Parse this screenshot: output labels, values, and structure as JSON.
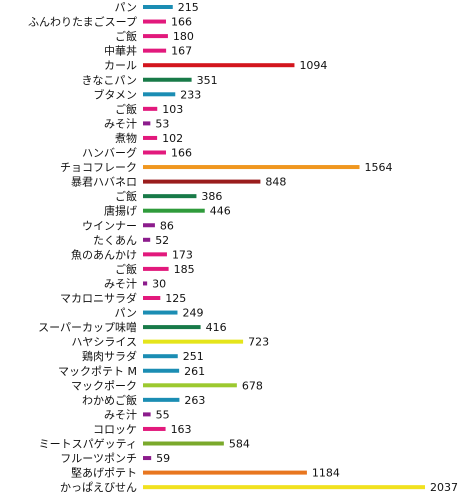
{
  "chart_data": {
    "type": "bar",
    "orientation": "horizontal",
    "categories": [
      "パン",
      "ふんわりたまごスープ",
      "ご飯",
      "中華丼",
      "カール",
      "きなこパン",
      "ブタメン",
      "ご飯",
      "みそ汁",
      "煮物",
      "ハンバーグ",
      "チョコフレーク",
      "暴君ハバネロ",
      "ご飯",
      "唐揚げ",
      "ウインナー",
      "たくあん",
      "魚のあんかけ",
      "ご飯",
      "みそ汁",
      "マカロニサラダ",
      "パン",
      "スーパーカップ味噌",
      "ハヤシライス",
      "鶏肉サラダ",
      "マックポテト M",
      "マックポーク",
      "わかめご飯",
      "みそ汁",
      "コロッケ",
      "ミートスパゲッティ",
      "フルーツポンチ",
      "堅あげポテト",
      "かっぱえびせん"
    ],
    "values": [
      215,
      166,
      180,
      167,
      1094,
      351,
      233,
      103,
      53,
      102,
      166,
      1564,
      848,
      386,
      446,
      86,
      52,
      173,
      185,
      30,
      125,
      249,
      416,
      723,
      251,
      261,
      678,
      263,
      55,
      163,
      584,
      59,
      1184,
      2037
    ],
    "colors": [
      "#1b8db3",
      "#e2197c",
      "#e2197c",
      "#e2197c",
      "#d3151d",
      "#187a48",
      "#1b8db3",
      "#e2197c",
      "#8c1c8c",
      "#e2197c",
      "#e2197c",
      "#f0971f",
      "#9a1d1d",
      "#187a48",
      "#2f9b3b",
      "#8c1c8c",
      "#8c1c8c",
      "#e2197c",
      "#e2197c",
      "#8c1c8c",
      "#e2197c",
      "#1b8db3",
      "#187a48",
      "#e5e51b",
      "#1b8db3",
      "#1b8db3",
      "#9cc92f",
      "#1b8db3",
      "#8c1c8c",
      "#e2197c",
      "#7aa92b",
      "#8c1c8c",
      "#e8761f",
      "#f1e11f"
    ],
    "xlim": [
      0,
      2037
    ]
  }
}
